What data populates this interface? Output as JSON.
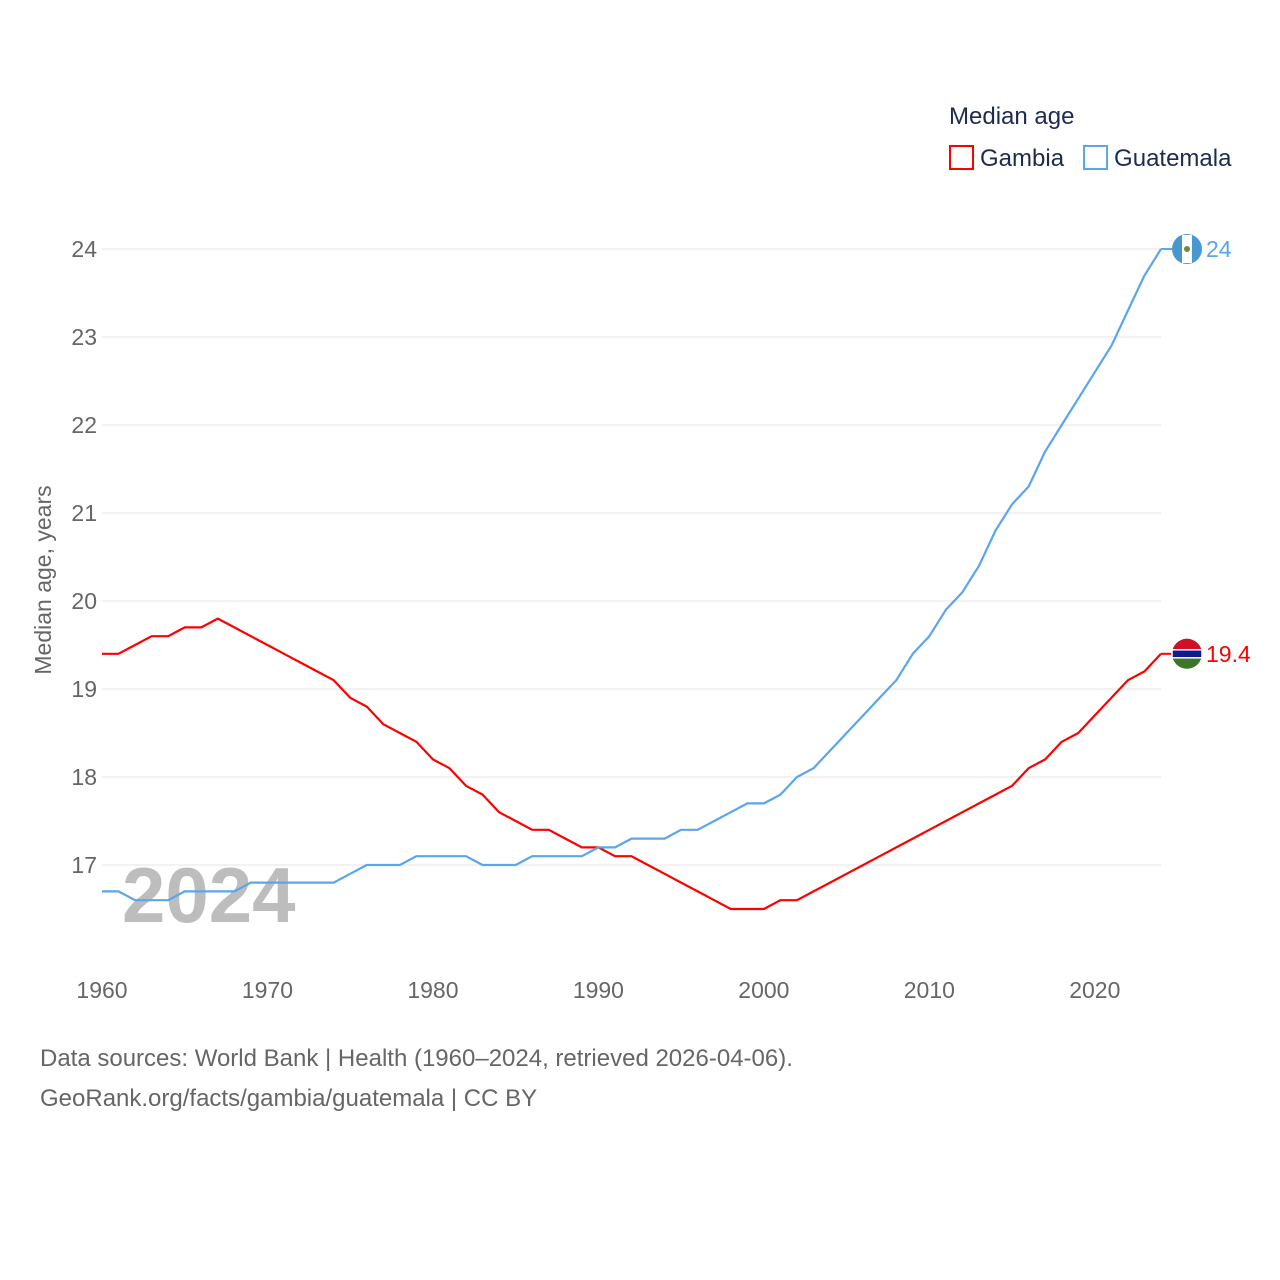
{
  "chart_data": {
    "type": "line",
    "legend_title": "Median age",
    "legend_position": "top-right",
    "ylabel": "Median age, years",
    "xlabel": "",
    "ylim": [
      16,
      24
    ],
    "xlim": [
      1960,
      2024
    ],
    "yticks": [
      17,
      18,
      19,
      20,
      21,
      22,
      23,
      24
    ],
    "xticks": [
      1960,
      1970,
      1980,
      1990,
      2000,
      2010,
      2020
    ],
    "grid": true,
    "watermark_year": "2024",
    "x": [
      1960,
      1961,
      1962,
      1963,
      1964,
      1965,
      1966,
      1967,
      1968,
      1969,
      1970,
      1971,
      1972,
      1973,
      1974,
      1975,
      1976,
      1977,
      1978,
      1979,
      1980,
      1981,
      1982,
      1983,
      1984,
      1985,
      1986,
      1987,
      1988,
      1989,
      1990,
      1991,
      1992,
      1993,
      1994,
      1995,
      1996,
      1997,
      1998,
      1999,
      2000,
      2001,
      2002,
      2003,
      2004,
      2005,
      2006,
      2007,
      2008,
      2009,
      2010,
      2011,
      2012,
      2013,
      2014,
      2015,
      2016,
      2017,
      2018,
      2019,
      2020,
      2021,
      2022,
      2023,
      2024
    ],
    "series": [
      {
        "name": "Gambia",
        "color": "#ff0000",
        "end_label": "19.4",
        "values": [
          19.4,
          19.4,
          19.5,
          19.6,
          19.6,
          19.7,
          19.7,
          19.8,
          19.7,
          19.6,
          19.5,
          19.4,
          19.3,
          19.2,
          19.1,
          18.9,
          18.8,
          18.6,
          18.5,
          18.4,
          18.2,
          18.1,
          17.9,
          17.8,
          17.6,
          17.5,
          17.4,
          17.4,
          17.3,
          17.2,
          17.2,
          17.1,
          17.1,
          17.0,
          16.9,
          16.8,
          16.7,
          16.6,
          16.5,
          16.5,
          16.5,
          16.6,
          16.6,
          16.7,
          16.8,
          16.9,
          17.0,
          17.1,
          17.2,
          17.3,
          17.4,
          17.5,
          17.6,
          17.7,
          17.8,
          17.9,
          18.1,
          18.2,
          18.4,
          18.5,
          18.7,
          18.9,
          19.1,
          19.2,
          19.4
        ]
      },
      {
        "name": "Guatemala",
        "color": "#5aa5ee",
        "end_label": "24",
        "values": [
          16.7,
          16.7,
          16.6,
          16.6,
          16.6,
          16.7,
          16.7,
          16.7,
          16.7,
          16.8,
          16.8,
          16.8,
          16.8,
          16.8,
          16.8,
          16.9,
          17.0,
          17.0,
          17.0,
          17.1,
          17.1,
          17.1,
          17.1,
          17.0,
          17.0,
          17.0,
          17.1,
          17.1,
          17.1,
          17.1,
          17.2,
          17.2,
          17.3,
          17.3,
          17.3,
          17.4,
          17.4,
          17.5,
          17.6,
          17.7,
          17.7,
          17.8,
          18.0,
          18.1,
          18.3,
          18.5,
          18.7,
          18.9,
          19.1,
          19.4,
          19.6,
          19.9,
          20.1,
          20.4,
          20.8,
          21.1,
          21.3,
          21.7,
          22.0,
          22.3,
          22.6,
          22.9,
          23.3,
          23.7,
          24.0
        ]
      }
    ]
  },
  "footer": {
    "line1": "Data sources: World Bank | Health (1960–2024, retrieved 2026-04-06).",
    "line2": "GeoRank.org/facts/gambia/guatemala | CC BY"
  }
}
